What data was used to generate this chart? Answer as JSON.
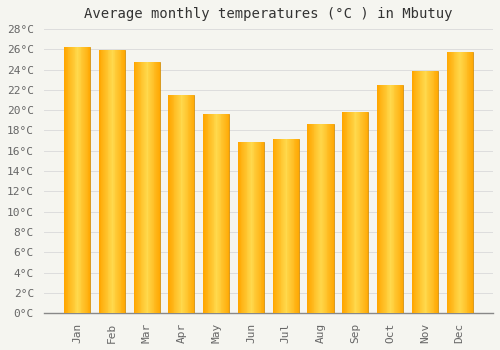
{
  "title": "Average monthly temperatures (°C ) in Mbutuy",
  "months": [
    "Jan",
    "Feb",
    "Mar",
    "Apr",
    "May",
    "Jun",
    "Jul",
    "Aug",
    "Sep",
    "Oct",
    "Nov",
    "Dec"
  ],
  "values": [
    26.2,
    25.9,
    24.8,
    21.5,
    19.6,
    16.9,
    17.2,
    18.6,
    19.8,
    22.5,
    23.9,
    25.7
  ],
  "bar_color": "#FFA500",
  "bar_edge_color": "#CC8800",
  "ylim": [
    0,
    28
  ],
  "ytick_step": 2,
  "background_color": "#F5F5F0",
  "plot_bg_color": "#F5F5F0",
  "grid_color": "#DDDDDD",
  "title_fontsize": 10,
  "tick_fontsize": 8,
  "font_family": "monospace"
}
